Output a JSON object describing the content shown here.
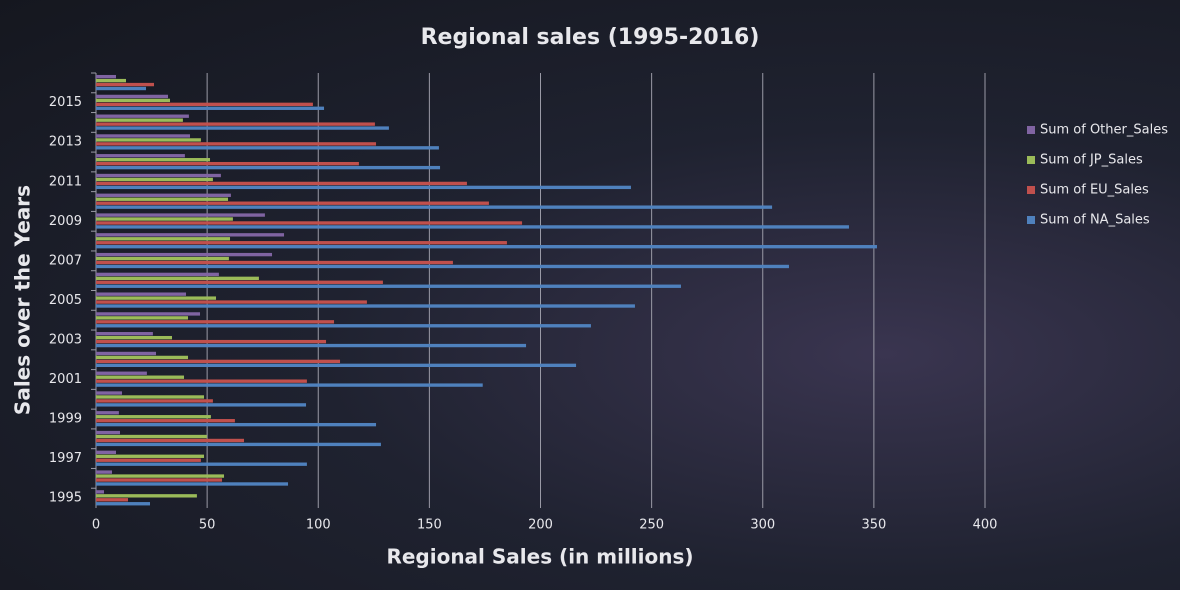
{
  "chart_data": {
    "type": "hbar",
    "title": "Regional sales (1995-2016)",
    "x_label": "Regional Sales (in millions)",
    "y_label": "Sales over the Years",
    "categories": [
      "1995",
      null,
      "1997",
      null,
      "1999",
      null,
      "2001",
      null,
      "2003",
      null,
      "2005",
      null,
      "2007",
      null,
      "2009",
      null,
      "2011",
      null,
      "2013",
      null,
      "2015",
      null
    ],
    "series": [
      {
        "name": "Sum of Other_Sales",
        "color": "#8064a2",
        "values": [
          3.6,
          7.2,
          9,
          10.8,
          10.3,
          11.7,
          22.9,
          27,
          25.6,
          46.8,
          40.5,
          55.3,
          79.2,
          84.6,
          76,
          60.7,
          56.2,
          40,
          42.3,
          41.8,
          32.4,
          9
        ]
      },
      {
        "name": "Sum of JP_Sales",
        "color": "#9bbb59",
        "values": [
          45.4,
          57.6,
          48.6,
          49.9,
          51.7,
          48.6,
          39.6,
          41.4,
          34.2,
          41.4,
          54,
          73.3,
          59.8,
          60.3,
          61.6,
          59.4,
          52.6,
          51.3,
          47.2,
          39.1,
          33.3,
          13.5
        ]
      },
      {
        "name": "Sum of EU_Sales",
        "color": "#c0504d",
        "values": [
          14.4,
          56.7,
          47.2,
          66.6,
          62.5,
          52.6,
          94.9,
          109.8,
          103.5,
          107.1,
          121.9,
          129.1,
          160.6,
          184.9,
          191.7,
          176.8,
          166.9,
          118.3,
          126,
          125.5,
          97.6,
          26.1
        ]
      },
      {
        "name": "Sum of NA_Sales",
        "color": "#4f81bd",
        "values": [
          24.3,
          86.4,
          94.9,
          128.2,
          126,
          94.5,
          174,
          216,
          193.5,
          222.7,
          242.5,
          263.2,
          311.8,
          351.4,
          338.8,
          304.2,
          240.7,
          154.8,
          154.3,
          131.8,
          102.6,
          22.5
        ]
      }
    ],
    "xlim": [
      0,
      400
    ],
    "xticks": [
      0,
      50,
      100,
      150,
      200,
      250,
      300,
      350,
      400
    ],
    "grid": true,
    "legend": "right"
  }
}
